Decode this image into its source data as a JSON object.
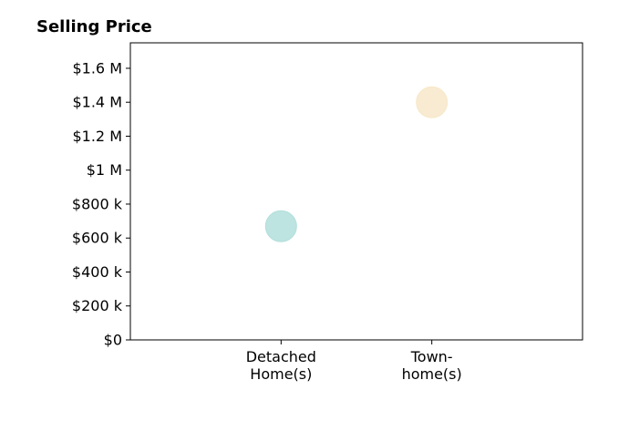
{
  "chart_data": {
    "type": "scatter",
    "title": "Selling Price",
    "xlabel": "",
    "ylabel": "",
    "categories": [
      [
        "Detached",
        "Home(s)"
      ],
      [
        "Town-",
        "home(s)"
      ]
    ],
    "y_ticks": [
      {
        "value": 0,
        "label": "$0"
      },
      {
        "value": 200000,
        "label": "$200 k"
      },
      {
        "value": 400000,
        "label": "$400 k"
      },
      {
        "value": 600000,
        "label": "$600 k"
      },
      {
        "value": 800000,
        "label": "$800 k"
      },
      {
        "value": 1000000,
        "label": "$1 M"
      },
      {
        "value": 1200000,
        "label": "$1.2 M"
      },
      {
        "value": 1400000,
        "label": "$1.4 M"
      },
      {
        "value": 1600000,
        "label": "$1.6 M"
      }
    ],
    "ylim": [
      0,
      1750000
    ],
    "xlim": [
      -1,
      2
    ],
    "grid": false,
    "points": [
      {
        "category_index": 0,
        "value": 670000,
        "color": "#b2dfdb"
      },
      {
        "category_index": 1,
        "value": 1400000,
        "color": "#f7e8c9"
      }
    ]
  }
}
